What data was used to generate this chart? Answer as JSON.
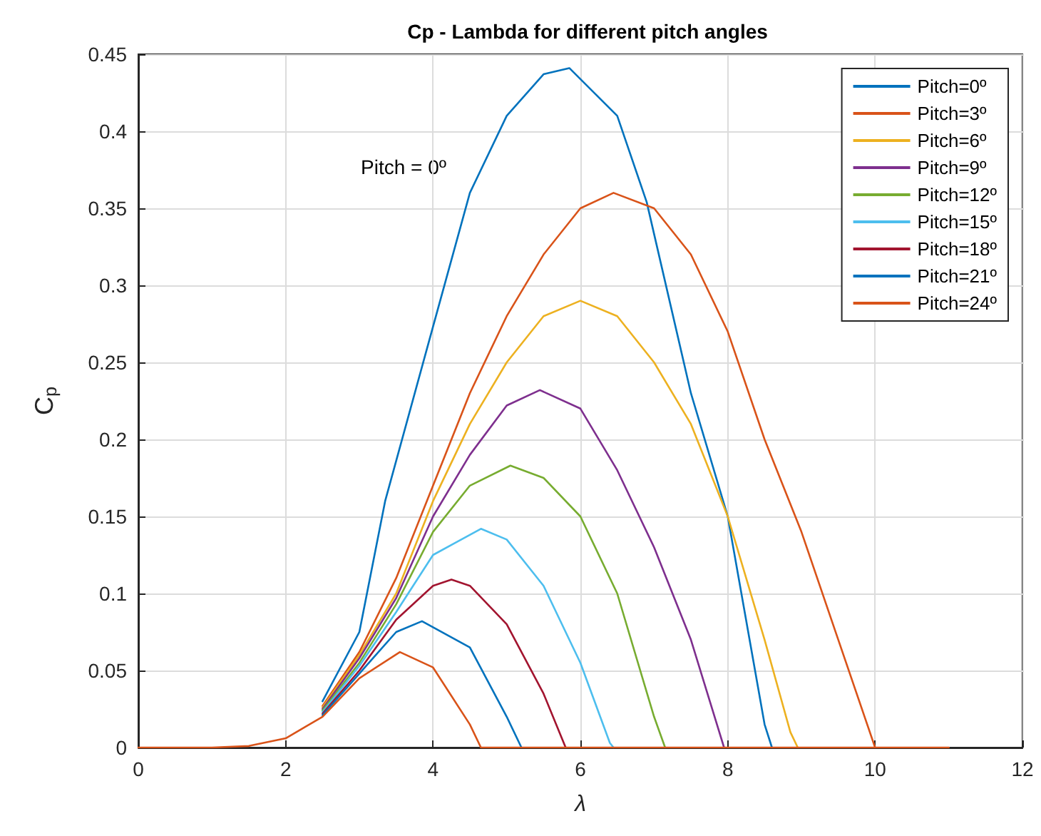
{
  "chart_data": {
    "type": "line",
    "title": "Cp - Lambda for different pitch angles",
    "xlabel": "λ",
    "ylabel": "C$_{p}$",
    "annotations": [
      "Pitch = 0º"
    ],
    "xlim": [
      0,
      12
    ],
    "xticks": [
      0,
      2,
      4,
      6,
      8,
      10,
      12
    ],
    "ylim": [
      0,
      0.45
    ],
    "yticks": [
      0,
      0.05,
      0.1,
      0.15,
      0.2,
      0.25,
      0.3,
      0.35,
      0.4,
      0.45
    ],
    "grid": true,
    "legend": "top right",
    "marker": "none",
    "line_style": "solid",
    "series": [
      {
        "name": "Pitch=0º",
        "color": "#0072bd",
        "x": [
          2.5,
          3,
          3.35,
          3.97,
          4.5,
          5,
          5.5,
          5.85,
          6.5,
          6.9,
          7.5,
          8,
          8.5,
          8.6
        ],
        "values": [
          0.03,
          0.075,
          0.16,
          0.268,
          0.36,
          0.41,
          0.437,
          0.441,
          0.41,
          0.354,
          0.23,
          0.15,
          0.015,
          0
        ]
      },
      {
        "name": "Pitch=3º",
        "color": "#d95319",
        "x": [
          2.5,
          3,
          3.5,
          4,
          4.5,
          5,
          5.5,
          6,
          6.45,
          7,
          7.5,
          8,
          8.5,
          9,
          9.5,
          10
        ],
        "values": [
          0.027,
          0.062,
          0.11,
          0.17,
          0.23,
          0.28,
          0.32,
          0.35,
          0.36,
          0.35,
          0.32,
          0.27,
          0.2,
          0.14,
          0.07,
          0
        ]
      },
      {
        "name": "Pitch=6º",
        "color": "#edb120",
        "x": [
          2.5,
          3,
          3.5,
          4,
          4.5,
          5,
          5.5,
          6,
          6.5,
          7,
          7.5,
          8,
          8.5,
          8.85,
          8.95
        ],
        "values": [
          0.026,
          0.06,
          0.1,
          0.16,
          0.21,
          0.25,
          0.28,
          0.29,
          0.28,
          0.25,
          0.21,
          0.15,
          0.07,
          0.01,
          0
        ]
      },
      {
        "name": "Pitch=9º",
        "color": "#7e2f8e",
        "x": [
          2.5,
          3,
          3.5,
          4,
          4.5,
          5,
          5.45,
          6,
          6.5,
          7,
          7.5,
          7.95
        ],
        "values": [
          0.025,
          0.058,
          0.097,
          0.15,
          0.19,
          0.222,
          0.232,
          0.22,
          0.18,
          0.13,
          0.07,
          0
        ]
      },
      {
        "name": "Pitch=12º",
        "color": "#77ac30",
        "x": [
          2.5,
          3,
          3.5,
          4,
          4.5,
          5.05,
          5.5,
          6,
          6.5,
          7,
          7.15
        ],
        "values": [
          0.024,
          0.055,
          0.093,
          0.14,
          0.17,
          0.183,
          0.175,
          0.15,
          0.1,
          0.02,
          0
        ]
      },
      {
        "name": "Pitch=15º",
        "color": "#4dbeee",
        "x": [
          2.5,
          3,
          3.5,
          4,
          4.65,
          5,
          5.5,
          6,
          6.4,
          6.45
        ],
        "values": [
          0.023,
          0.053,
          0.088,
          0.125,
          0.142,
          0.135,
          0.105,
          0.055,
          0.003,
          0
        ]
      },
      {
        "name": "Pitch=18º",
        "color": "#a2142f",
        "x": [
          2.5,
          3,
          3.5,
          4,
          4.25,
          4.5,
          5,
          5.5,
          5.8
        ],
        "values": [
          0.022,
          0.05,
          0.083,
          0.105,
          0.109,
          0.105,
          0.08,
          0.035,
          0
        ]
      },
      {
        "name": "Pitch=21º",
        "color": "#0072bd",
        "x": [
          2.5,
          3,
          3.5,
          3.85,
          4.5,
          5,
          5.2
        ],
        "values": [
          0.021,
          0.048,
          0.075,
          0.082,
          0.065,
          0.02,
          0
        ]
      },
      {
        "name": "Pitch=24º",
        "color": "#d95319",
        "x": [
          0,
          1,
          1.5,
          2,
          2.5,
          3,
          3.55,
          4,
          4.5,
          4.65,
          11
        ],
        "values": [
          0,
          0,
          0.001,
          0.006,
          0.02,
          0.045,
          0.062,
          0.052,
          0.015,
          0,
          0
        ]
      }
    ]
  }
}
